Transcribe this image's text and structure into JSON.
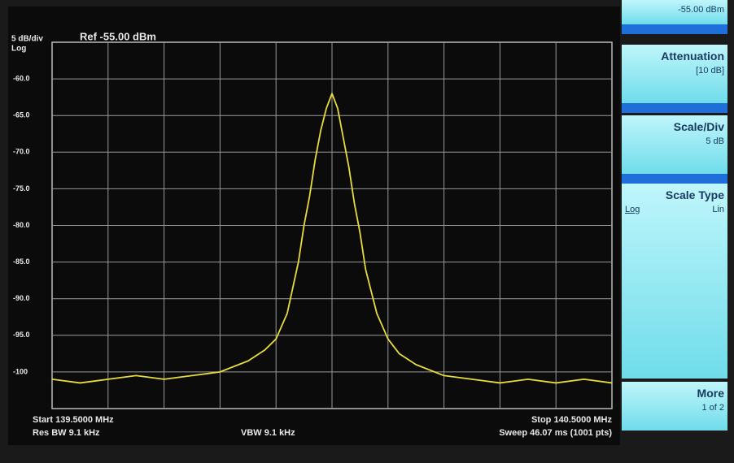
{
  "chart_data": {
    "type": "line",
    "scale_label": "5 dB/div",
    "scale_type": "Log",
    "reference": "Ref -55.00 dBm",
    "start": "Start 139.5000 MHz",
    "res_bw": "Res BW 9.1 kHz",
    "vbw": "VBW 9.1 kHz",
    "stop": "Stop 140.5000 MHz",
    "sweep": "Sweep  46.07 ms (1001 pts)",
    "x": [
      139.5,
      139.55,
      139.6,
      139.65,
      139.7,
      139.75,
      139.8,
      139.85,
      139.88,
      139.9,
      139.92,
      139.94,
      139.95,
      139.96,
      139.97,
      139.98,
      139.99,
      140.0,
      140.01,
      140.02,
      140.03,
      140.04,
      140.05,
      140.06,
      140.08,
      140.1,
      140.12,
      140.15,
      140.2,
      140.25,
      140.3,
      140.35,
      140.4,
      140.45,
      140.5
    ],
    "series": [
      {
        "color": "#e6dc3c",
        "values": [
          -101,
          -101.5,
          -101,
          -100.5,
          -101,
          -100.5,
          -100,
          -98.5,
          -97,
          -95.5,
          -92,
          -85,
          -80,
          -76,
          -71,
          -67,
          -64,
          -62,
          -64,
          -68,
          -72,
          -77,
          -81,
          -86,
          -92,
          -95.5,
          -97.5,
          -99,
          -100.5,
          -101,
          -101.5,
          -101,
          -101.5,
          -101,
          -101.5
        ]
      }
    ],
    "xlim": [
      139.5,
      140.5
    ],
    "ylim": [
      -105,
      -55
    ],
    "yticks": [
      {
        "value": -60,
        "label": "-60.0"
      },
      {
        "value": -65,
        "label": "-65.0"
      },
      {
        "value": -70,
        "label": "-70.0"
      },
      {
        "value": -75,
        "label": "-75.0"
      },
      {
        "value": -80,
        "label": "-80.0"
      },
      {
        "value": -85,
        "label": "-85.0"
      },
      {
        "value": -90,
        "label": "-90.0"
      },
      {
        "value": -95,
        "label": "-95.0"
      },
      -100
    ],
    "grid": true
  },
  "softkeys": {
    "top_value": "-55.00 dBm",
    "attenuation": {
      "label": "Attenuation",
      "value": "[10 dB]"
    },
    "scale_div": {
      "label": "Scale/Div",
      "value": "5 dB"
    },
    "scale_type": {
      "label": "Scale Type",
      "option_a": "Log",
      "option_b": "Lin"
    },
    "more": {
      "label": "More",
      "value": "1 of 2"
    }
  }
}
